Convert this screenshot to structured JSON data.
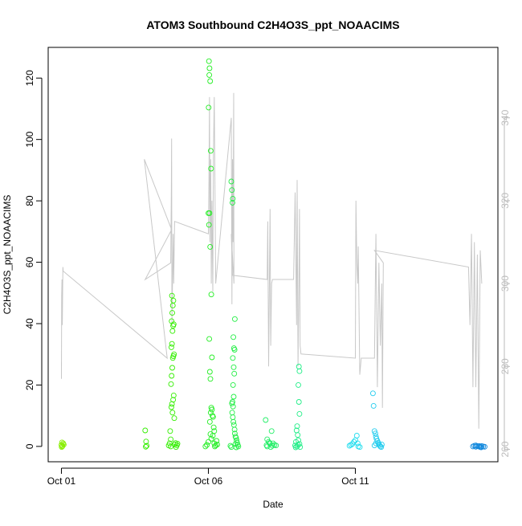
{
  "chart_data": {
    "type": "scatter",
    "title": "ATOM3 Southbound C2H4O3S_ppt_NOAACIMS",
    "xlabel": "Date",
    "ylabel": "C2H4O3S_ppt_NOAACIMS",
    "x_ticks": [
      {
        "day": 1,
        "label": "Oct 01"
      },
      {
        "day": 6,
        "label": "Oct 06"
      },
      {
        "day": 11,
        "label": "Oct 11"
      }
    ],
    "xlim": [
      0.55,
      15.85
    ],
    "ylim": [
      -5,
      130
    ],
    "y_ticks": [
      0,
      20,
      40,
      60,
      80,
      100,
      120
    ],
    "y2lim": [
      257,
      357
    ],
    "y2_ticks": [
      260,
      280,
      300,
      320,
      340
    ],
    "grid": false,
    "colors": {
      "secondary_line": "#c8c8c8",
      "secondary_axis": "#bbbbbb",
      "axis": "#000000"
    },
    "series": [
      {
        "kind": "points",
        "color": "#88ee00",
        "points": [
          [
            1.0,
            0.5
          ],
          [
            1.02,
            1.3
          ],
          [
            1.04,
            0.2
          ],
          [
            1.06,
            1.0
          ],
          [
            1.03,
            0.0
          ],
          [
            1.08,
            0.6
          ],
          [
            1.01,
            -0.2
          ]
        ]
      },
      {
        "kind": "points",
        "color": "#33ee00",
        "points": [
          [
            3.85,
            5.2
          ],
          [
            3.88,
            1.6
          ],
          [
            3.9,
            0.2
          ],
          [
            3.87,
            -0.1
          ],
          [
            4.65,
            0.3
          ],
          [
            4.68,
            1.0
          ],
          [
            4.7,
            5.0
          ],
          [
            4.72,
            0.0
          ],
          [
            4.74,
            12.8
          ],
          [
            4.76,
            13.8
          ],
          [
            4.78,
            11.0
          ],
          [
            4.8,
            15.2
          ],
          [
            4.82,
            16.6
          ],
          [
            4.84,
            9.2
          ],
          [
            4.73,
            20.3
          ],
          [
            4.75,
            23.0
          ],
          [
            4.77,
            25.6
          ],
          [
            4.79,
            28.8
          ],
          [
            4.81,
            29.4
          ],
          [
            4.83,
            30.0
          ],
          [
            4.74,
            32.3
          ],
          [
            4.76,
            33.4
          ],
          [
            4.78,
            37.6
          ],
          [
            4.8,
            39.3
          ],
          [
            4.82,
            39.8
          ],
          [
            4.75,
            40.8
          ],
          [
            4.77,
            43.5
          ],
          [
            4.79,
            45.9
          ],
          [
            4.81,
            47.5
          ],
          [
            4.76,
            49.1
          ],
          [
            4.85,
            0.6
          ],
          [
            4.88,
            1.1
          ],
          [
            4.9,
            -0.2
          ],
          [
            4.93,
            0.4
          ],
          [
            4.72,
            2.3
          ],
          [
            4.95,
            0.9
          ]
        ]
      },
      {
        "kind": "points",
        "color": "#22ee22",
        "points": [
          [
            5.9,
            0.0
          ],
          [
            5.95,
            0.5
          ],
          [
            6.0,
            1.5
          ],
          [
            6.02,
            125.5
          ],
          [
            6.04,
            123.2
          ],
          [
            6.03,
            121.0
          ],
          [
            6.06,
            119.0
          ],
          [
            6.01,
            110.4
          ],
          [
            6.08,
            96.3
          ],
          [
            6.09,
            90.5
          ],
          [
            6.0,
            76.0
          ],
          [
            6.04,
            76.0
          ],
          [
            6.02,
            72.2
          ],
          [
            6.06,
            65.0
          ],
          [
            6.1,
            49.5
          ],
          [
            6.03,
            35.0
          ],
          [
            6.12,
            29.0
          ],
          [
            6.05,
            24.3
          ],
          [
            6.07,
            22.0
          ],
          [
            6.1,
            12.6
          ],
          [
            6.12,
            12.0
          ],
          [
            6.08,
            11.0
          ],
          [
            6.14,
            10.0
          ],
          [
            6.16,
            9.6
          ],
          [
            6.05,
            8.0
          ],
          [
            6.18,
            6.2
          ],
          [
            6.2,
            5.0
          ],
          [
            6.07,
            4.0
          ],
          [
            6.15,
            3.5
          ],
          [
            6.1,
            2.5
          ],
          [
            6.2,
            1.0
          ],
          [
            6.25,
            0.3
          ],
          [
            6.3,
            0.6
          ],
          [
            6.22,
            0.0
          ],
          [
            6.28,
            1.8
          ]
        ]
      },
      {
        "kind": "points",
        "color": "#22ee44",
        "points": [
          [
            6.78,
            86.3
          ],
          [
            6.8,
            83.5
          ],
          [
            6.83,
            80.7
          ],
          [
            6.82,
            79.4
          ],
          [
            6.9,
            41.5
          ],
          [
            6.85,
            35.6
          ],
          [
            6.87,
            32.0
          ],
          [
            6.89,
            31.5
          ],
          [
            6.83,
            28.8
          ],
          [
            6.86,
            25.8
          ],
          [
            6.88,
            23.7
          ],
          [
            6.84,
            20.0
          ],
          [
            6.86,
            16.2
          ],
          [
            6.8,
            14.0
          ],
          [
            6.82,
            14.5
          ],
          [
            6.84,
            13.0
          ],
          [
            6.81,
            11.0
          ],
          [
            6.83,
            9.5
          ],
          [
            6.85,
            8.0
          ],
          [
            6.87,
            7.0
          ],
          [
            6.89,
            5.5
          ],
          [
            6.9,
            4.2
          ],
          [
            6.92,
            3.2
          ],
          [
            6.94,
            2.8
          ],
          [
            6.96,
            2.0
          ],
          [
            6.98,
            1.2
          ],
          [
            7.0,
            0.5
          ],
          [
            6.75,
            0.2
          ],
          [
            6.78,
            -0.2
          ],
          [
            6.92,
            0.8
          ],
          [
            7.02,
            0.0
          ],
          [
            6.95,
            -0.3
          ]
        ]
      },
      {
        "kind": "points",
        "color": "#22ee66",
        "points": [
          [
            7.95,
            8.6
          ],
          [
            8.0,
            2.3
          ],
          [
            8.05,
            1.5
          ],
          [
            8.1,
            0.8
          ],
          [
            8.15,
            5.0
          ],
          [
            8.2,
            1.0
          ],
          [
            8.25,
            0.5
          ],
          [
            8.0,
            0.0
          ],
          [
            8.12,
            -0.2
          ],
          [
            8.3,
            0.3
          ],
          [
            7.98,
            0.4
          ],
          [
            8.08,
            1.1
          ],
          [
            8.18,
            0.2
          ]
        ]
      },
      {
        "kind": "points",
        "color": "#22ee88",
        "points": [
          [
            8.95,
            0.3
          ],
          [
            8.98,
            1.5
          ],
          [
            9.0,
            5.2
          ],
          [
            9.02,
            6.6
          ],
          [
            9.04,
            3.7
          ],
          [
            9.06,
            2.0
          ],
          [
            9.08,
            26.0
          ],
          [
            9.1,
            24.5
          ],
          [
            9.06,
            20.0
          ],
          [
            9.08,
            14.5
          ],
          [
            9.1,
            10.6
          ],
          [
            9.05,
            0.5
          ],
          [
            9.12,
            -0.2
          ],
          [
            9.02,
            0.0
          ],
          [
            8.97,
            -0.3
          ],
          [
            9.1,
            0.8
          ]
        ]
      },
      {
        "kind": "points",
        "color": "#22ddee",
        "points": [
          [
            10.8,
            0.2
          ],
          [
            10.9,
            0.8
          ],
          [
            10.95,
            1.5
          ],
          [
            11.0,
            2.0
          ],
          [
            11.05,
            3.5
          ],
          [
            11.1,
            0.0
          ],
          [
            11.15,
            -0.2
          ],
          [
            10.85,
            0.5
          ],
          [
            11.08,
            1.0
          ]
        ]
      },
      {
        "kind": "points",
        "color": "#22ccee",
        "points": [
          [
            11.6,
            17.3
          ],
          [
            11.62,
            13.2
          ],
          [
            11.65,
            5.0
          ],
          [
            11.68,
            4.2
          ],
          [
            11.7,
            3.2
          ],
          [
            11.72,
            2.5
          ],
          [
            11.75,
            1.8
          ],
          [
            11.78,
            1.2
          ],
          [
            11.8,
            0.8
          ],
          [
            11.82,
            0.4
          ],
          [
            11.85,
            0.0
          ],
          [
            11.88,
            -0.2
          ],
          [
            11.9,
            0.6
          ],
          [
            11.65,
            0.3
          ],
          [
            11.7,
            1.0
          ]
        ]
      },
      {
        "kind": "points",
        "color": "#1188dd",
        "points": [
          [
            15.0,
            0.0
          ],
          [
            15.05,
            0.2
          ],
          [
            15.1,
            -0.1
          ],
          [
            15.15,
            0.1
          ],
          [
            15.2,
            0.0
          ],
          [
            15.25,
            -0.2
          ],
          [
            15.3,
            0.1
          ],
          [
            15.35,
            0.0
          ],
          [
            15.4,
            -0.1
          ],
          [
            15.1,
            0.3
          ],
          [
            15.22,
            0.1
          ],
          [
            15.28,
            -0.3
          ]
        ]
      },
      {
        "kind": "secondary_line",
        "points": [
          [
            1.0,
            281
          ],
          [
            1.0,
            277
          ],
          [
            1.01,
            297
          ],
          [
            1.02,
            301
          ],
          [
            1.03,
            290
          ],
          [
            1.05,
            304
          ],
          [
            1.06,
            303
          ],
          [
            4.6,
            282
          ],
          [
            3.82,
            330
          ],
          [
            4.75,
            313
          ],
          [
            3.85,
            301
          ],
          [
            4.72,
            305
          ],
          [
            4.74,
            323
          ],
          [
            4.75,
            335
          ],
          [
            4.76,
            290
          ],
          [
            4.8,
            312
          ],
          [
            4.82,
            300
          ],
          [
            4.85,
            315
          ],
          [
            6.0,
            312
          ],
          [
            6.02,
            325
          ],
          [
            6.04,
            345
          ],
          [
            6.05,
            310
          ],
          [
            6.08,
            330
          ],
          [
            6.1,
            300
          ],
          [
            6.12,
            320
          ],
          [
            6.15,
            298
          ],
          [
            6.17,
            330
          ],
          [
            6.2,
            345
          ],
          [
            6.25,
            300
          ],
          [
            6.78,
            340
          ],
          [
            6.8,
            295
          ],
          [
            6.82,
            330
          ],
          [
            6.84,
            310
          ],
          [
            6.86,
            346
          ],
          [
            6.87,
            300
          ],
          [
            6.78,
            312
          ],
          [
            6.82,
            302
          ],
          [
            8.0,
            301
          ],
          [
            8.02,
            315
          ],
          [
            8.05,
            280
          ],
          [
            8.1,
            318
          ],
          [
            8.12,
            285
          ],
          [
            8.15,
            300
          ],
          [
            8.18,
            301
          ],
          [
            8.9,
            301
          ],
          [
            8.95,
            322
          ],
          [
            9.0,
            290
          ],
          [
            9.02,
            325
          ],
          [
            9.05,
            280
          ],
          [
            9.08,
            300
          ],
          [
            9.1,
            318
          ],
          [
            9.12,
            285
          ],
          [
            9.15,
            283
          ],
          [
            11.0,
            282
          ],
          [
            11.02,
            320
          ],
          [
            11.05,
            305
          ],
          [
            11.08,
            300
          ],
          [
            11.1,
            309
          ],
          [
            11.15,
            278
          ],
          [
            11.2,
            282
          ],
          [
            11.65,
            282
          ],
          [
            11.7,
            312
          ],
          [
            11.75,
            275
          ],
          [
            11.8,
            305
          ],
          [
            11.85,
            285
          ],
          [
            11.9,
            300
          ],
          [
            11.92,
            270
          ],
          [
            11.95,
            305
          ],
          [
            11.65,
            308
          ],
          [
            14.85,
            304
          ],
          [
            14.9,
            290
          ],
          [
            14.95,
            312
          ],
          [
            15.0,
            275
          ],
          [
            15.05,
            310
          ],
          [
            15.1,
            275
          ],
          [
            15.15,
            307
          ],
          [
            15.2,
            265
          ],
          [
            15.25,
            308
          ],
          [
            15.3,
            300
          ]
        ]
      }
    ]
  }
}
